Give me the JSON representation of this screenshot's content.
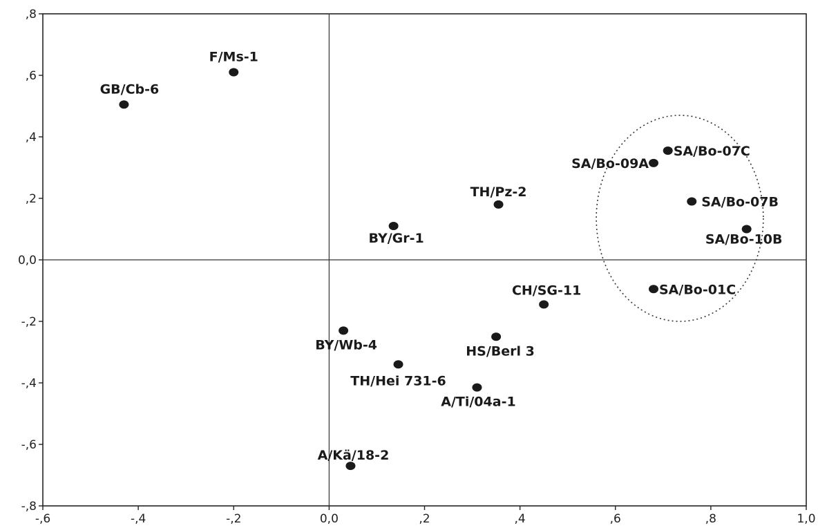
{
  "chart_data": {
    "type": "scatter",
    "title": "",
    "xlabel": "",
    "ylabel": "",
    "xlim": [
      -0.6,
      1.0
    ],
    "ylim": [
      -0.8,
      0.8
    ],
    "x_ticks": [
      -0.6,
      -0.4,
      -0.2,
      0.0,
      0.2,
      0.4,
      0.6,
      0.8,
      1.0
    ],
    "y_ticks": [
      -0.8,
      -0.6,
      -0.4,
      -0.2,
      0.0,
      0.2,
      0.4,
      0.6,
      0.8
    ],
    "x_tick_labels": [
      "-,6",
      "-,4",
      "-,2",
      "0,0",
      ",2",
      ",4",
      ",6",
      ",8",
      "1,0"
    ],
    "y_tick_labels": [
      "-,8",
      "-,6",
      "-,4",
      "-,2",
      "0,0",
      ",2",
      ",4",
      ",6",
      ",8"
    ],
    "grid": false,
    "reference_lines": {
      "x": 0.0,
      "y": 0.0
    },
    "points": [
      {
        "label": "F/Ms-1",
        "x": -0.2,
        "y": 0.61
      },
      {
        "label": "GB/Cb-6",
        "x": -0.43,
        "y": 0.505
      },
      {
        "label": "BY/Gr-1",
        "x": 0.135,
        "y": 0.11
      },
      {
        "label": "TH/Pz-2",
        "x": 0.355,
        "y": 0.18
      },
      {
        "label": "SA/Bo-07C",
        "x": 0.71,
        "y": 0.355
      },
      {
        "label": "SA/Bo-09A",
        "x": 0.68,
        "y": 0.315
      },
      {
        "label": "SA/Bo-07B",
        "x": 0.76,
        "y": 0.19
      },
      {
        "label": "SA/Bo-10B",
        "x": 0.875,
        "y": 0.1
      },
      {
        "label": "SA/Bo-01C",
        "x": 0.68,
        "y": -0.095
      },
      {
        "label": "CH/SG-11",
        "x": 0.45,
        "y": -0.145
      },
      {
        "label": "BY/Wb-4",
        "x": 0.03,
        "y": -0.23
      },
      {
        "label": "HS/Berl 3",
        "x": 0.35,
        "y": -0.25
      },
      {
        "label": "TH/Hei 731-6",
        "x": 0.145,
        "y": -0.34
      },
      {
        "label": "A/Ti/04a-1",
        "x": 0.31,
        "y": -0.415
      },
      {
        "label": "A/Kä/18-2",
        "x": 0.045,
        "y": -0.67
      }
    ],
    "highlight_ellipse": {
      "center_x": 0.735,
      "center_y": 0.135,
      "radius_x": 0.175,
      "radius_y": 0.335,
      "style": "dotted"
    }
  }
}
